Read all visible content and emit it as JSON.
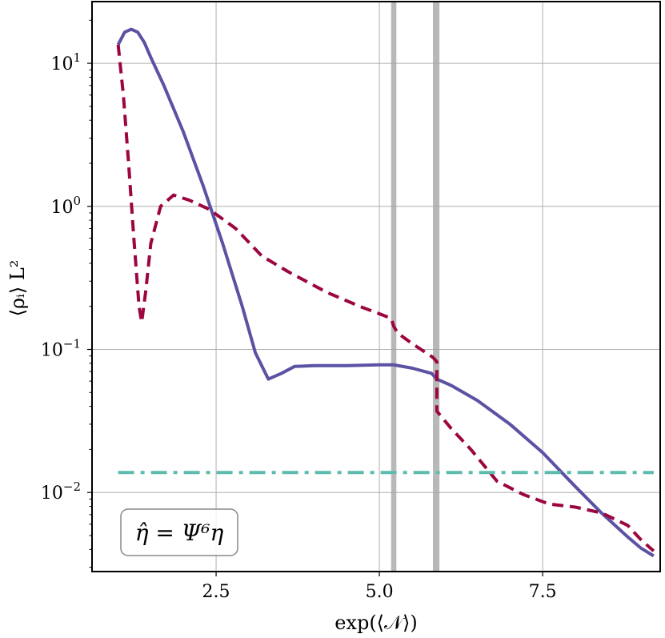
{
  "chart_data": {
    "type": "line",
    "title": "",
    "xlabel": "exp(⟨𝒩⟩)",
    "ylabel": "⟨ρᵢ⟩ L²",
    "yscale": "log",
    "grid": true,
    "xlim": [
      0.6,
      9.3
    ],
    "ylim": [
      0.0028,
      27
    ],
    "xticks": [
      2.5,
      5.0,
      7.5
    ],
    "xtick_labels": [
      "2.5",
      "5.0",
      "7.5"
    ],
    "yticks": [
      10,
      1,
      0.1,
      0.01
    ],
    "ytick_labels": [
      {
        "base": "10",
        "exp": "1"
      },
      {
        "base": "10",
        "exp": "0"
      },
      {
        "base": "10",
        "exp": "−1"
      },
      {
        "base": "10",
        "exp": "−2"
      }
    ],
    "vertical_bands": [
      {
        "x0": 5.18,
        "x1": 5.26,
        "color": "#a0a0a0"
      },
      {
        "x0": 5.82,
        "x1": 5.92,
        "color": "#a0a0a0"
      }
    ],
    "annotation": "η̂ = Ψ⁶η",
    "series": [
      {
        "style": "solid",
        "color": "#5b52a3",
        "x": [
          1.0,
          1.1,
          1.2,
          1.3,
          1.4,
          1.5,
          1.7,
          2.0,
          2.3,
          2.6,
          2.9,
          3.1,
          3.3,
          3.5,
          3.7,
          4.0,
          4.5,
          5.0,
          5.22,
          5.5,
          5.8,
          5.88,
          6.1,
          6.5,
          7.0,
          7.5,
          8.0,
          8.4,
          8.8,
          9.0,
          9.2
        ],
        "y": [
          13.5,
          16.5,
          17.3,
          16.5,
          14.0,
          11.0,
          7.0,
          3.3,
          1.4,
          0.55,
          0.2,
          0.095,
          0.062,
          0.068,
          0.076,
          0.077,
          0.077,
          0.078,
          0.078,
          0.074,
          0.068,
          0.062,
          0.056,
          0.044,
          0.03,
          0.019,
          0.011,
          0.0072,
          0.0049,
          0.0041,
          0.0036
        ]
      },
      {
        "style": "dashed",
        "color": "#9c0640",
        "x": [
          1.0,
          1.08,
          1.16,
          1.24,
          1.32,
          1.36,
          1.42,
          1.5,
          1.65,
          1.85,
          2.1,
          2.4,
          2.8,
          3.2,
          3.6,
          4.2,
          4.7,
          5.18,
          5.22,
          5.28,
          5.5,
          5.82,
          5.88,
          5.88,
          6.1,
          6.4,
          6.8,
          7.2,
          7.6,
          8.0,
          8.4,
          8.8,
          9.0,
          9.2
        ],
        "y": [
          13.5,
          6.0,
          2.0,
          0.6,
          0.2,
          0.155,
          0.25,
          0.55,
          1.0,
          1.2,
          1.1,
          0.95,
          0.7,
          0.45,
          0.35,
          0.25,
          0.2,
          0.165,
          0.145,
          0.13,
          0.11,
          0.088,
          0.082,
          0.037,
          0.028,
          0.02,
          0.012,
          0.0097,
          0.0083,
          0.0079,
          0.0072,
          0.0059,
          0.0047,
          0.0039
        ]
      },
      {
        "style": "dashdot",
        "color": "#5ebcae",
        "x": [
          1.0,
          9.2
        ],
        "y": [
          0.0138,
          0.0138
        ]
      }
    ]
  }
}
